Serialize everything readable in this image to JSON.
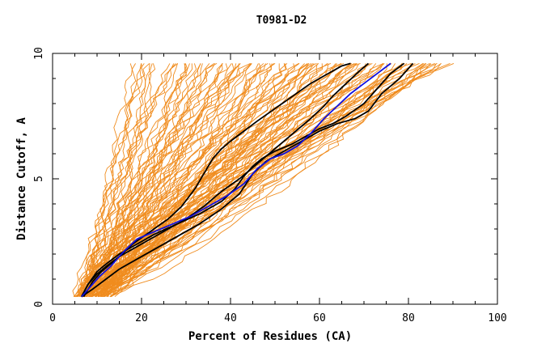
{
  "chart_data": {
    "type": "line",
    "title": "T0981-D2",
    "xlabel": "Percent of Residues (CA)",
    "ylabel": "Distance Cutoff, A",
    "xlim": [
      0,
      100
    ],
    "ylim": [
      0,
      10
    ],
    "x_ticks": [
      "0",
      "20",
      "40",
      "60",
      "80",
      "100"
    ],
    "y_ticks": [
      "0",
      "5",
      "10"
    ],
    "grid": false,
    "colors": {
      "background_models": "#f08c1e",
      "highlight_models": "#000000",
      "selected_model": "#1010e0",
      "axes": "#000000"
    },
    "highlight_series": [
      {
        "x": [
          7,
          9,
          11,
          13,
          15,
          18,
          22,
          26,
          29,
          32,
          34,
          36,
          38,
          40,
          43,
          46,
          50,
          54,
          58,
          61,
          63,
          65,
          67
        ],
        "y": [
          0.3,
          0.9,
          1.3,
          1.6,
          1.9,
          2.4,
          2.9,
          3.4,
          3.9,
          4.6,
          5.2,
          5.8,
          6.2,
          6.5,
          6.9,
          7.3,
          7.8,
          8.3,
          8.8,
          9.1,
          9.3,
          9.5,
          9.6
        ]
      },
      {
        "x": [
          6.5,
          8,
          10,
          12,
          15,
          18,
          22,
          26,
          30,
          34,
          38,
          42,
          46,
          50,
          54,
          58,
          61,
          63,
          66,
          69,
          71
        ],
        "y": [
          0.3,
          0.8,
          1.2,
          1.5,
          1.9,
          2.2,
          2.6,
          3.0,
          3.4,
          3.9,
          4.5,
          5.0,
          5.6,
          6.2,
          6.8,
          7.4,
          7.9,
          8.3,
          8.8,
          9.3,
          9.6
        ]
      },
      {
        "x": [
          6.5,
          9,
          12,
          15,
          19,
          23,
          28,
          33,
          38,
          42,
          45,
          48,
          52,
          56,
          60,
          64,
          68,
          71,
          74,
          78,
          81
        ],
        "y": [
          0.3,
          0.6,
          1.0,
          1.4,
          1.8,
          2.2,
          2.7,
          3.2,
          3.8,
          4.4,
          5.2,
          5.7,
          6.1,
          6.5,
          6.9,
          7.2,
          7.4,
          7.7,
          8.4,
          9.0,
          9.6
        ]
      },
      {
        "x": [
          6.5,
          8,
          10,
          12,
          15,
          19,
          23,
          28,
          33,
          38,
          41,
          43,
          45,
          47,
          50,
          54,
          57,
          60,
          63,
          66,
          70,
          73,
          76,
          79
        ],
        "y": [
          0.3,
          0.8,
          1.3,
          1.6,
          2.0,
          2.4,
          2.8,
          3.2,
          3.6,
          4.1,
          4.6,
          5.1,
          5.5,
          5.8,
          6.1,
          6.4,
          6.7,
          7.0,
          7.2,
          7.5,
          8.0,
          8.6,
          9.2,
          9.6
        ]
      }
    ],
    "selected_series": {
      "x": [
        6.5,
        8.5,
        10.5,
        13,
        16,
        19,
        23,
        27,
        31,
        35,
        39,
        43,
        46,
        49,
        52,
        55,
        58,
        61,
        64,
        67,
        70,
        73,
        76
      ],
      "y": [
        0.3,
        0.7,
        1.1,
        1.5,
        2.1,
        2.6,
        2.9,
        3.2,
        3.5,
        3.9,
        4.3,
        4.8,
        5.4,
        5.8,
        6.0,
        6.3,
        6.8,
        7.4,
        7.9,
        8.4,
        8.8,
        9.2,
        9.6
      ]
    },
    "background_series_count": 120,
    "background_x_range_at_top": [
      17,
      89
    ],
    "background_x_range_at_bottom": [
      5,
      13
    ]
  }
}
